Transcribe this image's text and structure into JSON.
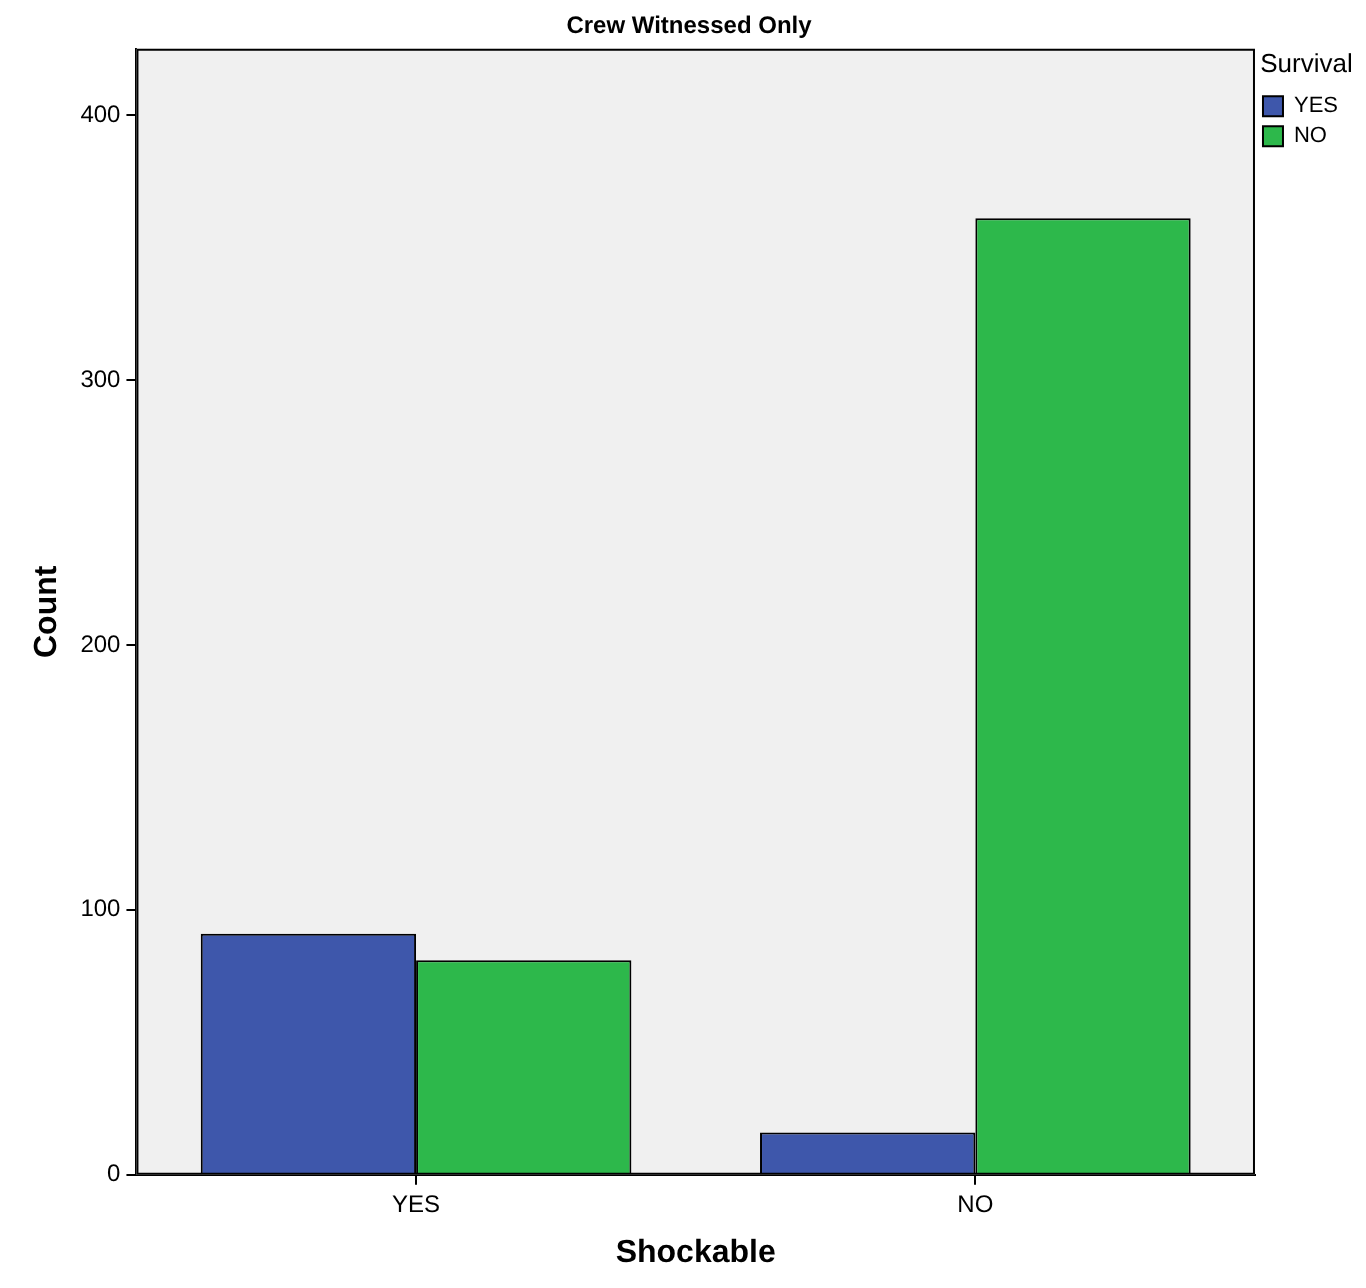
{
  "chart_data": {
    "type": "bar",
    "title": "Crew Witnessed Only",
    "xlabel": "Shockable",
    "ylabel": "Count",
    "legend_title": "Survival",
    "categories": [
      "YES",
      "NO"
    ],
    "series": [
      {
        "name": "YES",
        "color": "#3e57ab",
        "values": [
          91,
          16
        ]
      },
      {
        "name": "NO",
        "color": "#2db84b",
        "values": [
          81,
          361
        ]
      }
    ],
    "ylim": [
      0,
      425
    ],
    "yticks": [
      0,
      100,
      200,
      300,
      400
    ],
    "grid": false,
    "legend": "top right"
  }
}
